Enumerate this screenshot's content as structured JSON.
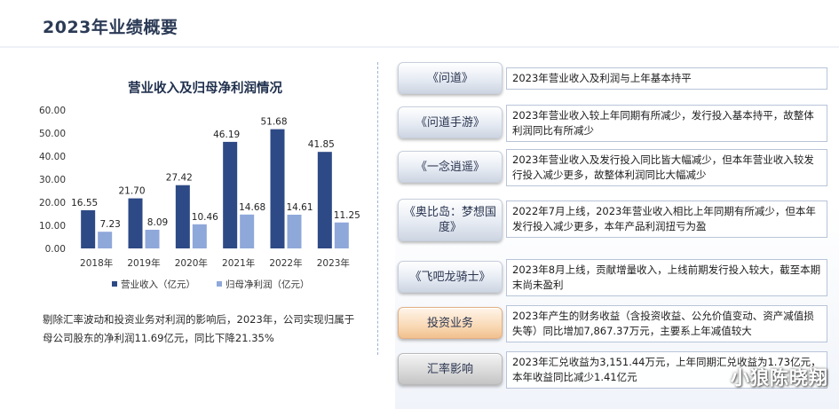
{
  "page": {
    "title": "2023年业绩概要",
    "note": "剔除汇率波动和投资业务对利润的影响后，2023年，公司实现归属于母公司股东的净利润11.69亿元，同比下降21.35%",
    "watermark": "小狼陈晓翔"
  },
  "colors": {
    "revenue": "#2e4a86",
    "profit": "#8fa8da",
    "title": "#2b3a55"
  },
  "chart_data": {
    "type": "bar",
    "title": "营业收入及归母净利润情况",
    "categories": [
      "2018年",
      "2019年",
      "2020年",
      "2021年",
      "2022年",
      "2023年"
    ],
    "series": [
      {
        "name": "营业收入（亿元）",
        "values": [
          16.55,
          21.7,
          27.42,
          46.19,
          51.68,
          41.85
        ],
        "labels": [
          "16.55",
          "21.70",
          "27.42",
          "46.19",
          "51.68",
          "41.85"
        ]
      },
      {
        "name": "归母净利润（亿元）",
        "values": [
          7.23,
          8.09,
          10.46,
          14.68,
          14.61,
          11.25
        ],
        "labels": [
          "7.23",
          "8.09",
          "10.46",
          "14.68",
          "14.61",
          "11.25"
        ]
      }
    ],
    "yticks": [
      "0.00",
      "10.00",
      "20.00",
      "30.00",
      "40.00",
      "50.00",
      "60.00"
    ],
    "ylim": [
      0,
      60
    ],
    "legend": "bottom",
    "grid": false
  },
  "items": [
    {
      "label": "《问道》",
      "text": "2023年营业收入及利润与上年基本持平"
    },
    {
      "label": "《问道手游》",
      "text": "2023年营业收入较上年同期有所减少，发行投入基本持平，故整体利润同比有所减少"
    },
    {
      "label": "《一念逍遥》",
      "text": "2023年营业收入及发行投入同比皆大幅减少，但本年营业收入较发行投入减少更多，故整体利润同比大幅减少"
    },
    {
      "label": "《奥比岛：梦想国度》",
      "text": "2022年7月上线，2023年营业收入相比上年同期有所减少，但本年发行投入减少更多，本年产品利润扭亏为盈"
    },
    {
      "label": "《飞吧龙骑士》",
      "text": "2023年8月上线，贡献增量收入，上线前期发行投入较大，截至本期末尚未盈利"
    },
    {
      "label": "投资业务",
      "text": "2023年产生的财务收益（含投资收益、公允价值变动、资产减值损失等）同比增加7,867.37万元，主要系上年减值较大"
    },
    {
      "label": "汇率影响",
      "text": "2023年汇兑收益为3,151.44万元，上年同期汇兑收益为1.73亿元，本年收益同比减少1.41亿元"
    }
  ]
}
